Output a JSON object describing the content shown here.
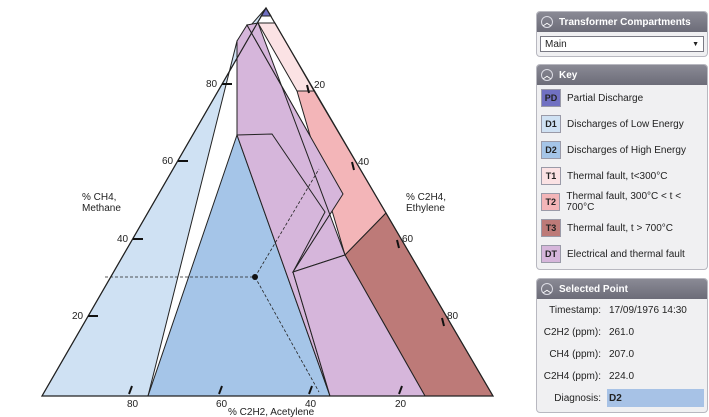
{
  "colors": {
    "PD": "#7070c2",
    "D1": "#cfe1f3",
    "D2": "#a5c5e8",
    "T1": "#fbe2e4",
    "T2": "#f3b5b8",
    "T3": "#bd7a78",
    "DT": "#d6b6db",
    "diagnosis_highlight": "#a7c2e6"
  },
  "axes": {
    "ch4_label_line1": "% CH4,",
    "ch4_label_line2": "Methane",
    "c2h4_label_line1": "% C2H4,",
    "c2h4_label_line2": "Ethylene",
    "c2h2_label": "% C2H2, Acetylene",
    "left_ticks": [
      "20",
      "40",
      "60",
      "80"
    ],
    "right_ticks": [
      "20",
      "40",
      "60",
      "80"
    ],
    "bottom_ticks": [
      "80",
      "60",
      "40",
      "20"
    ]
  },
  "compartments": {
    "title": "Transformer Compartments",
    "selected": "Main"
  },
  "key": {
    "title": "Key",
    "items": [
      {
        "code": "PD",
        "label": "Partial Discharge"
      },
      {
        "code": "D1",
        "label": "Discharges of Low Energy"
      },
      {
        "code": "D2",
        "label": "Discharges of High Energy"
      },
      {
        "code": "T1",
        "label": "Thermal fault, t<300°C"
      },
      {
        "code": "T2",
        "label": "Thermal fault, 300°C < t < 700°C"
      },
      {
        "code": "T3",
        "label": "Thermal fault, t > 700°C"
      },
      {
        "code": "DT",
        "label": "Electrical and thermal fault"
      }
    ]
  },
  "selected_point": {
    "title": "Selected Point",
    "timestamp_label": "Timestamp:",
    "timestamp": "17/09/1976 14:30",
    "c2h2_label": "C2H2 (ppm):",
    "c2h2": "261.0",
    "ch4_label": "CH4 (ppm):",
    "ch4": "207.0",
    "c2h4_label": "C2H4 (ppm):",
    "c2h4": "224.0",
    "diagnosis_label": "Diagnosis:",
    "diagnosis": "D2"
  }
}
